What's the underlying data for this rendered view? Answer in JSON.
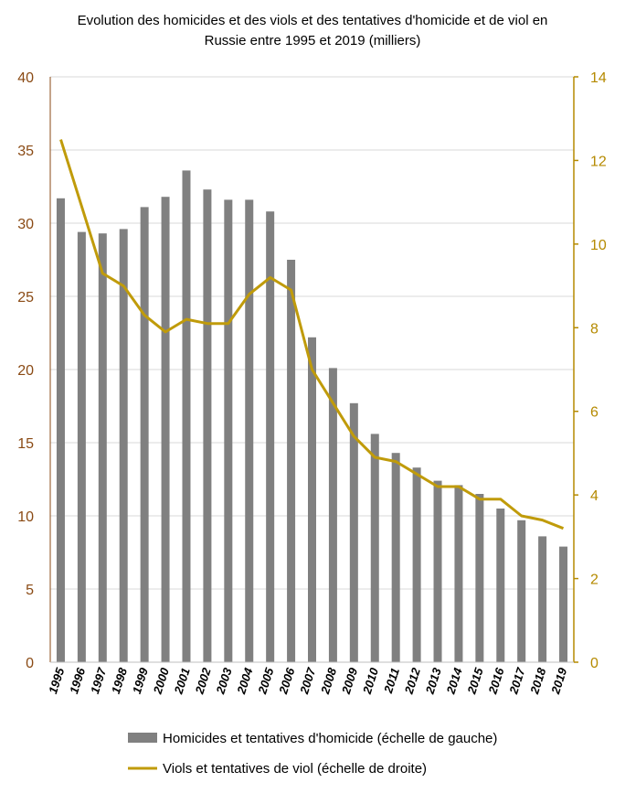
{
  "chart_data": {
    "type": "bar",
    "title_lines": [
      "Evolution des homicides et des viols et des tentatives d'homicide et de viol en",
      "Russie entre 1995 et 2019 (milliers)"
    ],
    "categories": [
      "1995",
      "1996",
      "1997",
      "1998",
      "1999",
      "2000",
      "2001",
      "2002",
      "2003",
      "2004",
      "2005",
      "2006",
      "2007",
      "2008",
      "2009",
      "2010",
      "2011",
      "2012",
      "2013",
      "2014",
      "2015",
      "2016",
      "2017",
      "2018",
      "2019"
    ],
    "series": [
      {
        "name": "Homicides et tentatives d'homicide (échelle de gauche)",
        "type": "bar",
        "axis": "left",
        "color": "#808080",
        "values": [
          31.7,
          29.4,
          29.3,
          29.6,
          31.1,
          31.8,
          33.6,
          32.3,
          31.6,
          31.6,
          30.8,
          27.5,
          22.2,
          20.1,
          17.7,
          15.6,
          14.3,
          13.3,
          12.4,
          12.1,
          11.5,
          10.5,
          9.7,
          8.6,
          7.9
        ]
      },
      {
        "name": "Viols et tentatives de viol (échelle de droite)",
        "type": "line",
        "axis": "right",
        "color": "#c09b0a",
        "values": [
          12.5,
          10.9,
          9.3,
          9.0,
          8.3,
          7.9,
          8.2,
          8.1,
          8.1,
          8.8,
          9.2,
          8.9,
          7.0,
          6.2,
          5.4,
          4.9,
          4.8,
          4.5,
          4.2,
          4.2,
          3.9,
          3.9,
          3.5,
          3.4,
          3.2
        ]
      }
    ],
    "y_left": {
      "min": 0,
      "max": 40,
      "ticks": [
        "0",
        "5",
        "10",
        "15",
        "20",
        "25",
        "30",
        "35",
        "40"
      ],
      "color": "#8a4a14"
    },
    "y_right": {
      "min": 0,
      "max": 14,
      "ticks": [
        "0",
        "2",
        "4",
        "6",
        "8",
        "10",
        "12",
        "14"
      ],
      "color": "#b58a00"
    },
    "grid": true,
    "legend_position": "bottom"
  }
}
